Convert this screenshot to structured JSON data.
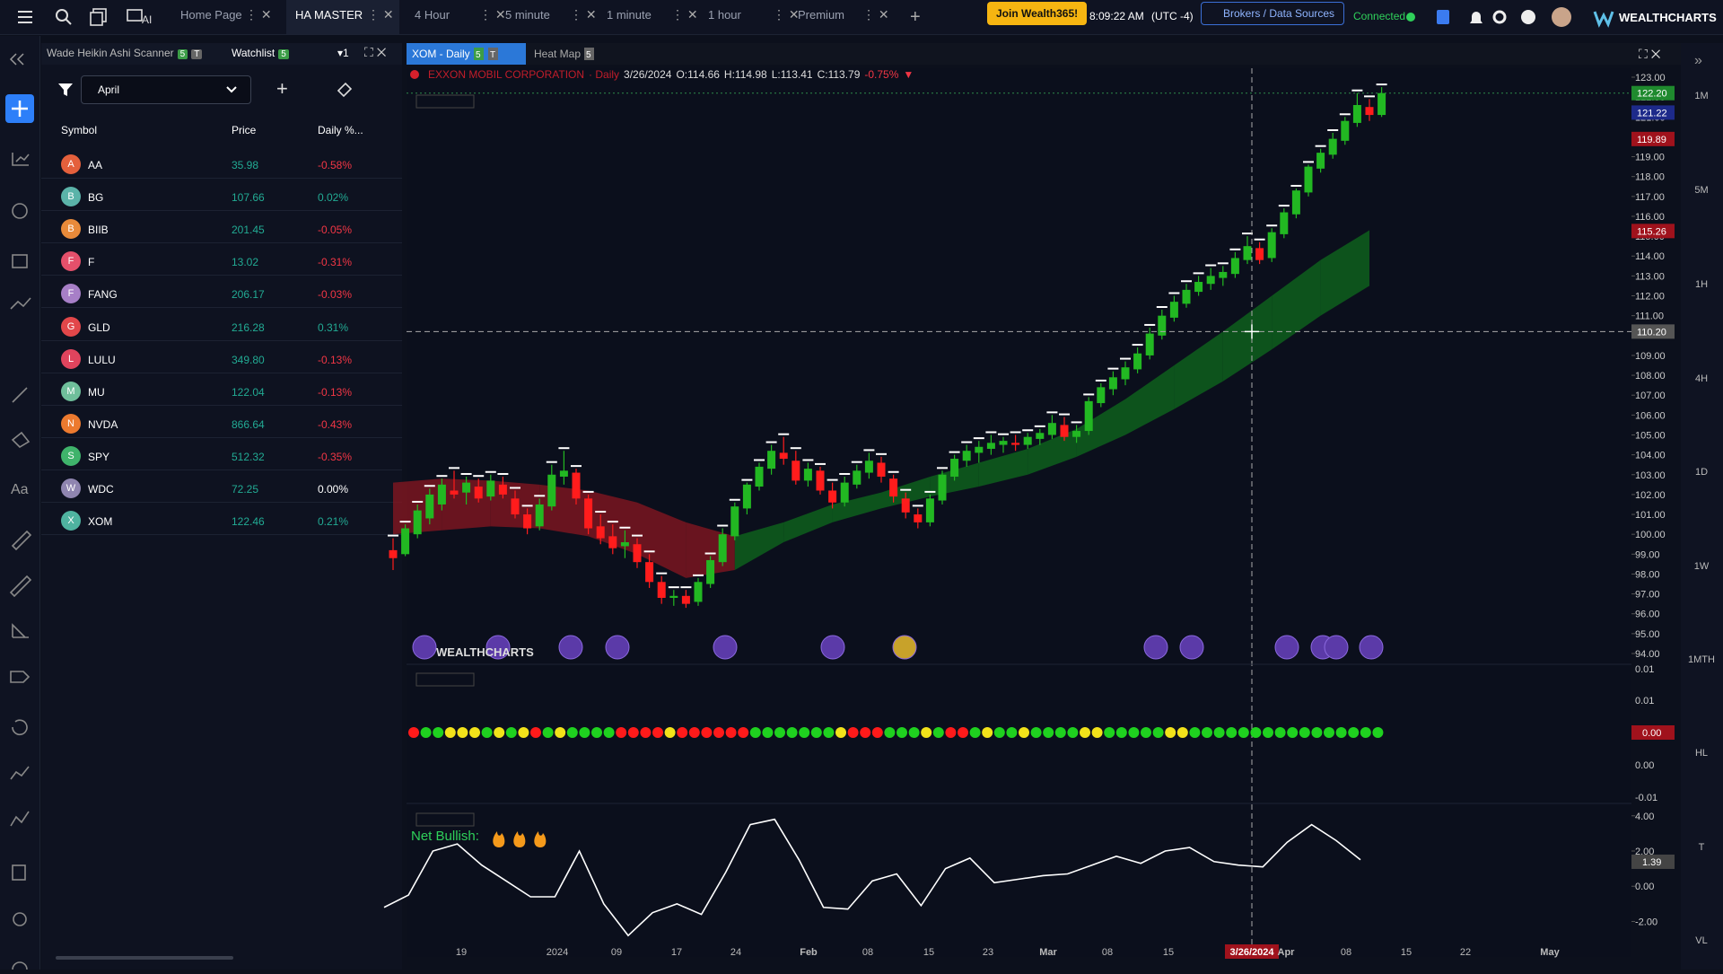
{
  "top_bar": {
    "ai_label": "AI",
    "tabs": [
      "Home Page",
      "HA MASTER",
      "4 Hour",
      "5 minute",
      "1 minute",
      "1 hour",
      "Premium"
    ],
    "join_button": "Join Wealth365!",
    "clock": "8:09:22 AM",
    "timezone": "(UTC -4)",
    "brokers_button": "Brokers / Data Sources",
    "status": "Connected",
    "brand": "WEALTHCHARTS"
  },
  "left_toolbar": {
    "text_tool": "Aa"
  },
  "scanner_panel": {
    "tabs": [
      {
        "label": "Wade Heikin Ashi Scanner",
        "badges": [
          "5",
          "T"
        ]
      },
      {
        "label": "Watchlist",
        "badges": [
          "5"
        ]
      }
    ],
    "link": "▾1",
    "filter": "April",
    "columns": [
      "Symbol",
      "Price",
      "Daily %..."
    ],
    "rows": [
      {
        "badge": "A",
        "badge_color": "#e4603c",
        "symbol": "AA",
        "price": "35.98",
        "change": "-0.58%"
      },
      {
        "badge": "B",
        "badge_color": "#5bb3a9",
        "symbol": "BG",
        "price": "107.66",
        "change": "0.02%"
      },
      {
        "badge": "B",
        "badge_color": "#e88a3a",
        "symbol": "BIIB",
        "price": "201.45",
        "change": "-0.05%"
      },
      {
        "badge": "F",
        "badge_color": "#e5506b",
        "symbol": "F",
        "price": "13.02",
        "change": "-0.31%"
      },
      {
        "badge": "F",
        "badge_color": "#a77fc7",
        "symbol": "FANG",
        "price": "206.17",
        "change": "-0.03%"
      },
      {
        "badge": "G",
        "badge_color": "#e2474a",
        "symbol": "GLD",
        "price": "216.28",
        "change": "0.31%"
      },
      {
        "badge": "L",
        "badge_color": "#e0445d",
        "symbol": "LULU",
        "price": "349.80",
        "change": "-0.13%"
      },
      {
        "badge": "M",
        "badge_color": "#6fbf9b",
        "symbol": "MU",
        "price": "122.04",
        "change": "-0.13%"
      },
      {
        "badge": "N",
        "badge_color": "#ec7a2f",
        "symbol": "NVDA",
        "price": "866.64",
        "change": "-0.43%"
      },
      {
        "badge": "S",
        "badge_color": "#3fb36b",
        "symbol": "SPY",
        "price": "512.32",
        "change": "-0.35%"
      },
      {
        "badge": "W",
        "badge_color": "#8f85b0",
        "symbol": "WDC",
        "price": "72.25",
        "change": "0.00%"
      },
      {
        "badge": "X",
        "badge_color": "#4fb3a0",
        "symbol": "XOM",
        "price": "122.46",
        "change": "0.21%"
      }
    ]
  },
  "chart_tabs": [
    {
      "label": "XOM - Daily",
      "badges": [
        "5",
        "T"
      ]
    },
    {
      "label": "Heat Map",
      "badges": [
        "5"
      ]
    }
  ],
  "legend": {
    "name": "EXXON MOBIL CORPORATION",
    "interval": "· Daily",
    "date": "3/26/2024",
    "open": "O:114.66",
    "high": "H:114.98",
    "low": "L:113.41",
    "close": "C:113.79",
    "change": "-0.75%",
    "arrow": "▼"
  },
  "price_chart": {
    "type": "candlestick",
    "ylim": [
      94,
      123
    ],
    "yticks": [
      {
        "value": 123,
        "label": "123.00"
      },
      {
        "value": 122,
        "label": "122.00"
      },
      {
        "value": 121,
        "label": "121.00"
      },
      {
        "value": 120,
        "label": "120.00"
      },
      {
        "value": 119,
        "label": "119.00"
      },
      {
        "value": 118,
        "label": "118.00"
      },
      {
        "value": 117,
        "label": "117.00"
      },
      {
        "value": 116,
        "label": "116.00"
      },
      {
        "value": 115,
        "label": "115.00"
      },
      {
        "value": 114,
        "label": "114.00"
      },
      {
        "value": 113,
        "label": "113.00"
      },
      {
        "value": 112,
        "label": "112.00"
      },
      {
        "value": 111,
        "label": "111.00"
      },
      {
        "value": 109,
        "label": "109.00"
      },
      {
        "value": 108,
        "label": "108.00"
      },
      {
        "value": 107,
        "label": "107.00"
      },
      {
        "value": 106,
        "label": "106.00"
      },
      {
        "value": 105,
        "label": "105.00"
      },
      {
        "value": 104,
        "label": "104.00"
      },
      {
        "value": 103,
        "label": "103.00"
      },
      {
        "value": 102,
        "label": "102.00"
      },
      {
        "value": 101,
        "label": "101.00"
      },
      {
        "value": 100,
        "label": "100.00"
      },
      {
        "value": 99,
        "label": "99.00"
      },
      {
        "value": 98,
        "label": "98.00"
      },
      {
        "value": 97,
        "label": "97.00"
      },
      {
        "value": 96,
        "label": "96.00"
      },
      {
        "value": 95,
        "label": "95.00"
      },
      {
        "value": 94,
        "label": "94.00"
      }
    ],
    "up_color": "#22b822",
    "down_color": "#ff1c1c",
    "candles": [
      [
        99.2,
        99.8,
        98.2,
        98.8
      ],
      [
        99.0,
        100.5,
        98.9,
        100.3
      ],
      [
        100.0,
        101.5,
        99.8,
        101.2
      ],
      [
        100.8,
        102.3,
        100.5,
        102.0
      ],
      [
        101.5,
        102.8,
        101.2,
        102.5
      ],
      [
        102.2,
        103.2,
        101.8,
        102.0
      ],
      [
        102.1,
        102.9,
        101.5,
        102.6
      ],
      [
        102.4,
        102.8,
        101.6,
        101.8
      ],
      [
        101.9,
        103.0,
        101.7,
        102.7
      ],
      [
        102.5,
        102.9,
        101.8,
        102.0
      ],
      [
        101.8,
        102.2,
        100.8,
        101.0
      ],
      [
        101.0,
        101.3,
        100.0,
        100.3
      ],
      [
        100.4,
        101.8,
        100.2,
        101.5
      ],
      [
        101.4,
        103.5,
        101.2,
        103.0
      ],
      [
        102.9,
        104.2,
        102.5,
        103.2
      ],
      [
        103.1,
        103.3,
        101.5,
        101.8
      ],
      [
        101.8,
        102.0,
        100.0,
        100.3
      ],
      [
        100.4,
        101.0,
        99.5,
        99.8
      ],
      [
        99.9,
        100.5,
        99.0,
        99.3
      ],
      [
        99.4,
        100.2,
        98.8,
        99.6
      ],
      [
        99.5,
        99.8,
        98.3,
        98.6
      ],
      [
        98.6,
        99.0,
        97.3,
        97.6
      ],
      [
        97.6,
        97.9,
        96.5,
        96.8
      ],
      [
        96.8,
        97.2,
        96.4,
        96.9
      ],
      [
        96.9,
        97.2,
        96.3,
        96.5
      ],
      [
        96.6,
        97.8,
        96.4,
        97.6
      ],
      [
        97.5,
        98.9,
        97.3,
        98.7
      ],
      [
        98.6,
        100.3,
        98.4,
        100.0
      ],
      [
        99.9,
        101.6,
        99.7,
        101.4
      ],
      [
        101.3,
        102.6,
        101.0,
        102.5
      ],
      [
        102.4,
        103.6,
        102.2,
        103.4
      ],
      [
        103.3,
        104.5,
        103.0,
        104.2
      ],
      [
        104.1,
        104.9,
        103.5,
        103.8
      ],
      [
        103.7,
        104.2,
        102.5,
        102.7
      ],
      [
        102.7,
        103.6,
        102.4,
        103.3
      ],
      [
        103.2,
        103.4,
        102.0,
        102.2
      ],
      [
        102.2,
        102.6,
        101.3,
        101.6
      ],
      [
        101.6,
        102.9,
        101.4,
        102.6
      ],
      [
        102.5,
        103.5,
        102.3,
        103.2
      ],
      [
        103.1,
        104.1,
        102.8,
        103.7
      ],
      [
        103.6,
        103.9,
        102.6,
        102.9
      ],
      [
        102.8,
        103.0,
        101.6,
        101.9
      ],
      [
        101.8,
        102.1,
        100.8,
        101.1
      ],
      [
        101.0,
        101.3,
        100.3,
        100.6
      ],
      [
        100.6,
        102.0,
        100.4,
        101.8
      ],
      [
        101.7,
        103.2,
        101.5,
        103.0
      ],
      [
        102.9,
        104.0,
        102.7,
        103.8
      ],
      [
        103.7,
        104.5,
        103.4,
        104.2
      ],
      [
        104.1,
        104.7,
        103.6,
        104.4
      ],
      [
        104.3,
        105.0,
        104.0,
        104.6
      ],
      [
        104.5,
        104.9,
        104.1,
        104.7
      ],
      [
        104.6,
        105.0,
        104.2,
        104.5
      ],
      [
        104.5,
        105.1,
        104.3,
        104.9
      ],
      [
        104.8,
        105.3,
        104.5,
        105.1
      ],
      [
        105.0,
        106.0,
        104.8,
        105.6
      ],
      [
        105.5,
        105.9,
        104.7,
        104.9
      ],
      [
        104.9,
        105.5,
        104.6,
        105.2
      ],
      [
        105.2,
        106.9,
        105.0,
        106.7
      ],
      [
        106.6,
        107.6,
        106.4,
        107.4
      ],
      [
        107.3,
        108.2,
        107.0,
        107.9
      ],
      [
        107.8,
        108.7,
        107.5,
        108.4
      ],
      [
        108.3,
        109.4,
        108.1,
        109.1
      ],
      [
        109.0,
        110.4,
        108.8,
        110.1
      ],
      [
        110.0,
        111.3,
        109.8,
        111.0
      ],
      [
        110.9,
        112.0,
        110.7,
        111.7
      ],
      [
        111.6,
        112.6,
        111.4,
        112.3
      ],
      [
        112.2,
        113.0,
        112.0,
        112.7
      ],
      [
        112.6,
        113.4,
        112.3,
        113.0
      ],
      [
        112.9,
        113.5,
        112.5,
        113.2
      ],
      [
        113.1,
        114.2,
        112.9,
        113.9
      ],
      [
        113.8,
        115.0,
        113.6,
        114.5
      ],
      [
        114.4,
        114.7,
        113.6,
        113.8
      ],
      [
        113.9,
        115.4,
        113.7,
        115.2
      ],
      [
        115.1,
        116.4,
        114.9,
        116.2
      ],
      [
        116.1,
        117.4,
        115.9,
        117.3
      ],
      [
        117.2,
        118.6,
        117.0,
        118.5
      ],
      [
        118.4,
        119.4,
        118.2,
        119.2
      ],
      [
        119.1,
        120.2,
        118.9,
        119.9
      ],
      [
        119.8,
        121.0,
        119.6,
        120.8
      ],
      [
        120.7,
        122.2,
        120.5,
        121.6
      ],
      [
        121.5,
        121.9,
        120.8,
        121.1
      ],
      [
        121.1,
        122.5,
        121.0,
        122.2
      ]
    ],
    "cloud_upper": [
      102.6,
      102.8,
      102.7,
      102.5,
      102.2,
      101.6,
      100.6,
      99.9,
      100.6,
      101.5,
      102.1,
      102.9,
      103.6,
      104.3,
      105.3,
      106.8,
      108.5,
      110.2,
      112.0,
      113.8,
      115.3
    ],
    "cloud_lower": [
      100.0,
      100.2,
      100.4,
      100.3,
      99.9,
      99.0,
      97.8,
      98.2,
      99.6,
      100.6,
      101.3,
      101.9,
      102.4,
      103.0,
      103.9,
      105.0,
      106.3,
      107.7,
      109.3,
      111.0,
      112.5
    ],
    "cloud_trend": "rrrrrrrggggggggggggg",
    "cloud_colors": {
      "r": "#8a1720",
      "g": "#0f6b1c"
    },
    "price_tags": [
      {
        "value": 122.2,
        "label": "122.20",
        "color": "#1f8a2e"
      },
      {
        "value": 121.22,
        "label": "121.22",
        "color": "#1d2a8a"
      },
      {
        "value": 119.89,
        "label": "119.89",
        "color": "#a0121c"
      },
      {
        "value": 115.26,
        "label": "115.26",
        "color": "#a0121c"
      }
    ],
    "crosshair_price": {
      "value": 110.2,
      "label": "110.20"
    },
    "watermark": "WEALTHCHARTS"
  },
  "signal_panel": {
    "axis_labels": [
      "0.01",
      "0.01",
      "0.00",
      "-0.01"
    ],
    "current": "0.00",
    "dots": "rggyyygygyrgyggggrrrryrrrrrrgggggggyrrrgggygrrgyggyggggyygggggyygggggggggggggggg",
    "dot_colors": {
      "r": "#ff1a1a",
      "g": "#1fd11f",
      "y": "#f2e21a"
    }
  },
  "oscillator": {
    "type": "line",
    "label": "Net Bullish:",
    "ylim": [
      -3.2,
      4.6
    ],
    "yticks": [
      {
        "value": 4,
        "label": "4.00"
      },
      {
        "value": 2,
        "label": "2.00"
      },
      {
        "value": 0,
        "label": "0.00"
      },
      {
        "value": -2,
        "label": "-2.00"
      }
    ],
    "values": [
      -1.2,
      -0.5,
      2.0,
      2.4,
      1.2,
      0.3,
      -0.6,
      -0.6,
      2.0,
      -1.0,
      -2.8,
      -1.5,
      -1.0,
      -1.6,
      0.8,
      3.5,
      3.8,
      1.5,
      -1.2,
      -1.3,
      0.3,
      0.7,
      -1.1,
      1.0,
      1.6,
      0.2,
      0.4,
      0.6,
      0.7,
      1.2,
      1.7,
      1.3,
      2.0,
      2.2,
      1.4,
      1.2,
      1.1,
      2.5,
      3.5,
      2.6,
      1.5
    ],
    "last": {
      "value": 1.39,
      "label": "1.39"
    }
  },
  "time_axis": {
    "labels": [
      "19",
      "2024",
      "09",
      "17",
      "24",
      "Feb",
      "08",
      "15",
      "23",
      "Mar",
      "08",
      "15",
      "3/26/2024",
      "Apr",
      "08",
      "15",
      "22",
      "May"
    ]
  },
  "timeframes": [
    "1M",
    "5M",
    "1H",
    "4H",
    "1D",
    "1W",
    "1MTH",
    "HL",
    "T",
    "VL"
  ]
}
